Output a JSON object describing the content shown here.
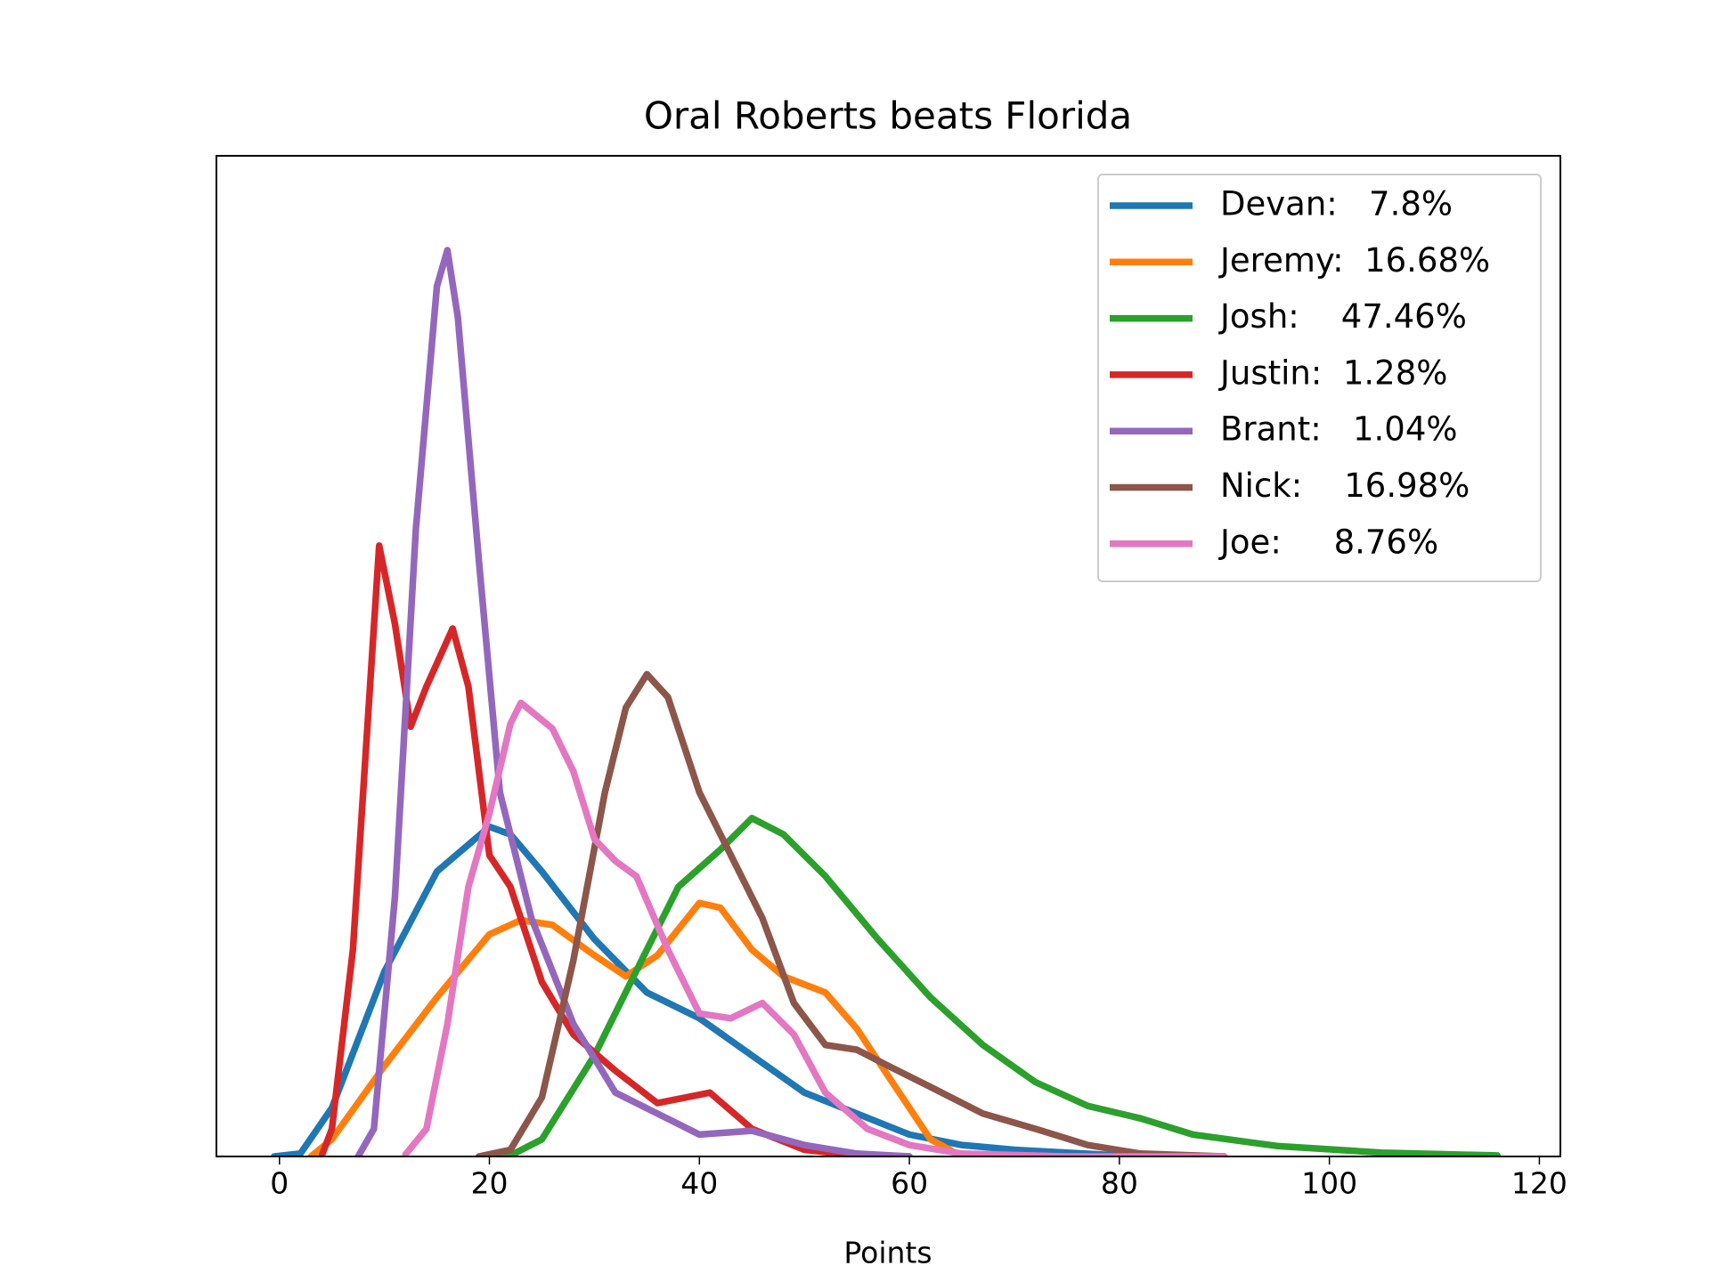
{
  "chart_data": {
    "type": "line",
    "title": "Oral Roberts beats Florida",
    "x_label": "Points",
    "xlim": [
      -6,
      122
    ],
    "xticks": [
      0,
      20,
      40,
      60,
      80,
      100,
      120
    ],
    "ylim": [
      0,
      1.05
    ],
    "grid": false,
    "legend": "upper right",
    "series": [
      {
        "name": "Devan:   7.8%",
        "color": "#1f77b4",
        "x": [
          -0.5,
          2,
          5,
          10,
          15,
          20,
          22,
          25,
          30,
          35,
          40,
          45,
          50,
          55,
          60,
          65,
          70,
          80,
          90
        ],
        "values": [
          0,
          0.003,
          0.051,
          0.194,
          0.299,
          0.346,
          0.338,
          0.299,
          0.228,
          0.172,
          0.145,
          0.106,
          0.067,
          0.045,
          0.023,
          0.012,
          0.007,
          0.001,
          0
        ]
      },
      {
        "name": "Jeremy:  16.68%",
        "color": "#ff7f0e",
        "x": [
          3,
          5,
          10,
          15,
          20,
          23,
          26,
          30,
          33,
          36,
          40,
          42,
          45,
          48,
          52,
          55,
          58,
          62,
          65
        ],
        "values": [
          0,
          0.018,
          0.095,
          0.167,
          0.233,
          0.248,
          0.243,
          0.211,
          0.189,
          0.211,
          0.266,
          0.261,
          0.217,
          0.189,
          0.172,
          0.134,
          0.084,
          0.018,
          0
        ]
      },
      {
        "name": "Josh:    47.46%",
        "color": "#2ca02c",
        "x": [
          19,
          22,
          25,
          30,
          35,
          38,
          42,
          45,
          48,
          52,
          57,
          62,
          67,
          72,
          77,
          82,
          87,
          95,
          105,
          116
        ],
        "values": [
          0,
          0.001,
          0.018,
          0.106,
          0.217,
          0.283,
          0.322,
          0.355,
          0.338,
          0.294,
          0.228,
          0.167,
          0.117,
          0.078,
          0.053,
          0.04,
          0.023,
          0.011,
          0.004,
          0.001
        ]
      },
      {
        "name": "Justin:  1.28%",
        "color": "#d62728",
        "x": [
          4,
          5,
          7,
          9.5,
          11,
          12.5,
          14,
          16.5,
          18,
          20,
          22,
          25,
          28,
          32,
          36,
          41,
          45,
          50,
          55,
          60
        ],
        "values": [
          0,
          0.029,
          0.217,
          0.641,
          0.559,
          0.451,
          0.493,
          0.554,
          0.493,
          0.316,
          0.283,
          0.183,
          0.128,
          0.09,
          0.056,
          0.067,
          0.029,
          0.007,
          0.001,
          0
        ]
      },
      {
        "name": "Brant:   1.04%",
        "color": "#9467bd",
        "x": [
          7.5,
          9,
          11,
          13,
          15,
          16,
          17,
          19,
          21,
          24,
          28,
          32,
          36,
          40,
          45,
          50,
          55,
          60
        ],
        "values": [
          0,
          0.029,
          0.272,
          0.659,
          0.913,
          0.951,
          0.88,
          0.625,
          0.382,
          0.25,
          0.139,
          0.067,
          0.045,
          0.023,
          0.027,
          0.012,
          0.003,
          0
        ]
      },
      {
        "name": "Nick:    16.98%",
        "color": "#8c564b",
        "x": [
          19,
          22,
          25,
          28,
          31,
          33,
          35,
          37,
          40,
          43,
          46,
          49,
          52,
          55,
          58,
          62,
          67,
          72,
          77,
          82,
          90
        ],
        "values": [
          0,
          0.007,
          0.062,
          0.206,
          0.382,
          0.471,
          0.506,
          0.482,
          0.382,
          0.316,
          0.25,
          0.161,
          0.117,
          0.112,
          0.095,
          0.073,
          0.045,
          0.029,
          0.012,
          0.003,
          0
        ]
      },
      {
        "name": "Joe:     8.76%",
        "color": "#e377c2",
        "x": [
          12,
          14,
          16,
          18,
          20,
          22,
          23,
          26,
          28,
          30,
          32,
          34,
          37,
          40,
          43,
          46,
          49,
          52,
          56,
          60,
          65,
          75,
          90
        ],
        "values": [
          0.002,
          0.029,
          0.139,
          0.283,
          0.36,
          0.454,
          0.476,
          0.449,
          0.404,
          0.333,
          0.31,
          0.294,
          0.217,
          0.15,
          0.145,
          0.161,
          0.128,
          0.067,
          0.029,
          0.012,
          0.003,
          0,
          0
        ]
      }
    ]
  }
}
